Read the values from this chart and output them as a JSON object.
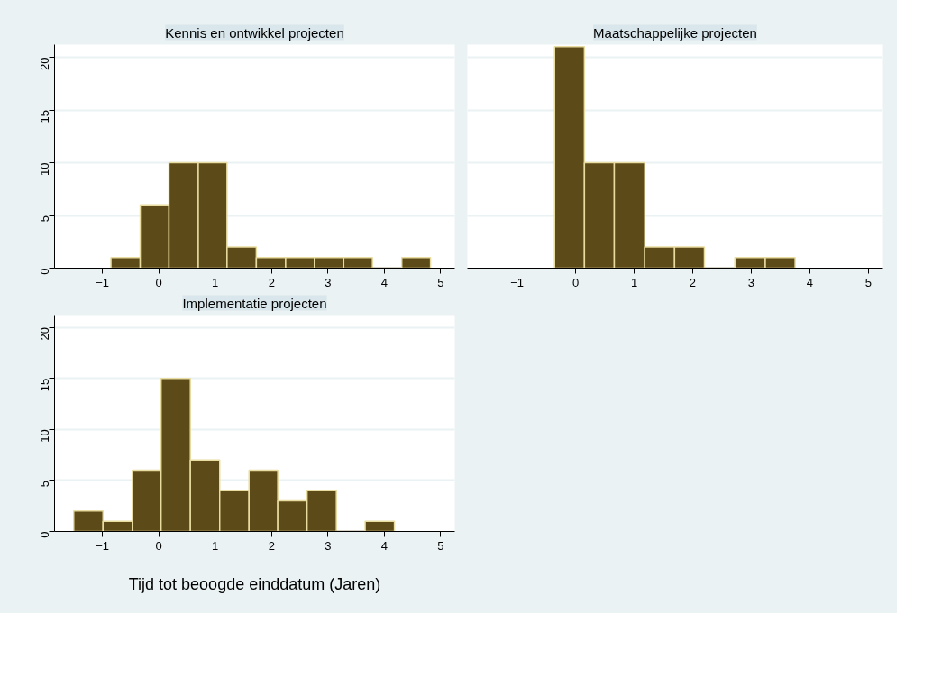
{
  "chart_data": [
    {
      "type": "histogram",
      "title": "Kennis en ontwikkel projecten",
      "bins": [
        -0.85,
        -0.33,
        0.18,
        0.7,
        1.21,
        1.73,
        2.25,
        2.76,
        3.28,
        3.79,
        4.31,
        4.82
      ],
      "values": [
        1,
        6,
        10,
        10,
        2,
        1,
        1,
        1,
        1,
        0,
        1
      ],
      "color": "#5c4a18",
      "xlim": [
        -1.85,
        5.25
      ],
      "ylim": [
        0,
        21.2
      ],
      "xticks": [
        -1,
        0,
        1,
        2,
        3,
        4,
        5
      ],
      "yticks": [
        0,
        5,
        10,
        15,
        20
      ],
      "grid": "y"
    },
    {
      "type": "histogram",
      "title": "Maatschappelijke projecten",
      "bins": [
        -0.36,
        0.15,
        0.66,
        1.18,
        1.69,
        2.2,
        2.72,
        3.24,
        3.75
      ],
      "values": [
        21,
        10,
        10,
        2,
        2,
        0,
        1,
        1
      ],
      "color": "#5c4a18",
      "xlim": [
        -1.85,
        5.25
      ],
      "ylim": [
        0,
        21.2
      ],
      "xticks": [
        -1,
        0,
        1,
        2,
        3,
        4,
        5
      ],
      "yticks": [
        0,
        5,
        10,
        15,
        20
      ],
      "grid": "y",
      "tick_labels": "x"
    },
    {
      "type": "histogram",
      "title": "Implementatie projecten",
      "xlabel": "Tijd tot beoogde einddatum (Jaren)",
      "bins": [
        -1.51,
        -0.99,
        -0.47,
        0.04,
        0.56,
        1.08,
        1.6,
        2.11,
        2.63,
        3.15,
        3.66,
        4.18
      ],
      "values": [
        2,
        1,
        6,
        15,
        7,
        4,
        6,
        3,
        4,
        0,
        1
      ],
      "color": "#5c4a18",
      "xlim": [
        -1.85,
        5.25
      ],
      "ylim": [
        0,
        21.2
      ],
      "xticks": [
        -1,
        0,
        1,
        2,
        3,
        4,
        5
      ],
      "yticks": [
        0,
        5,
        10,
        15,
        20
      ],
      "grid": "y"
    }
  ]
}
